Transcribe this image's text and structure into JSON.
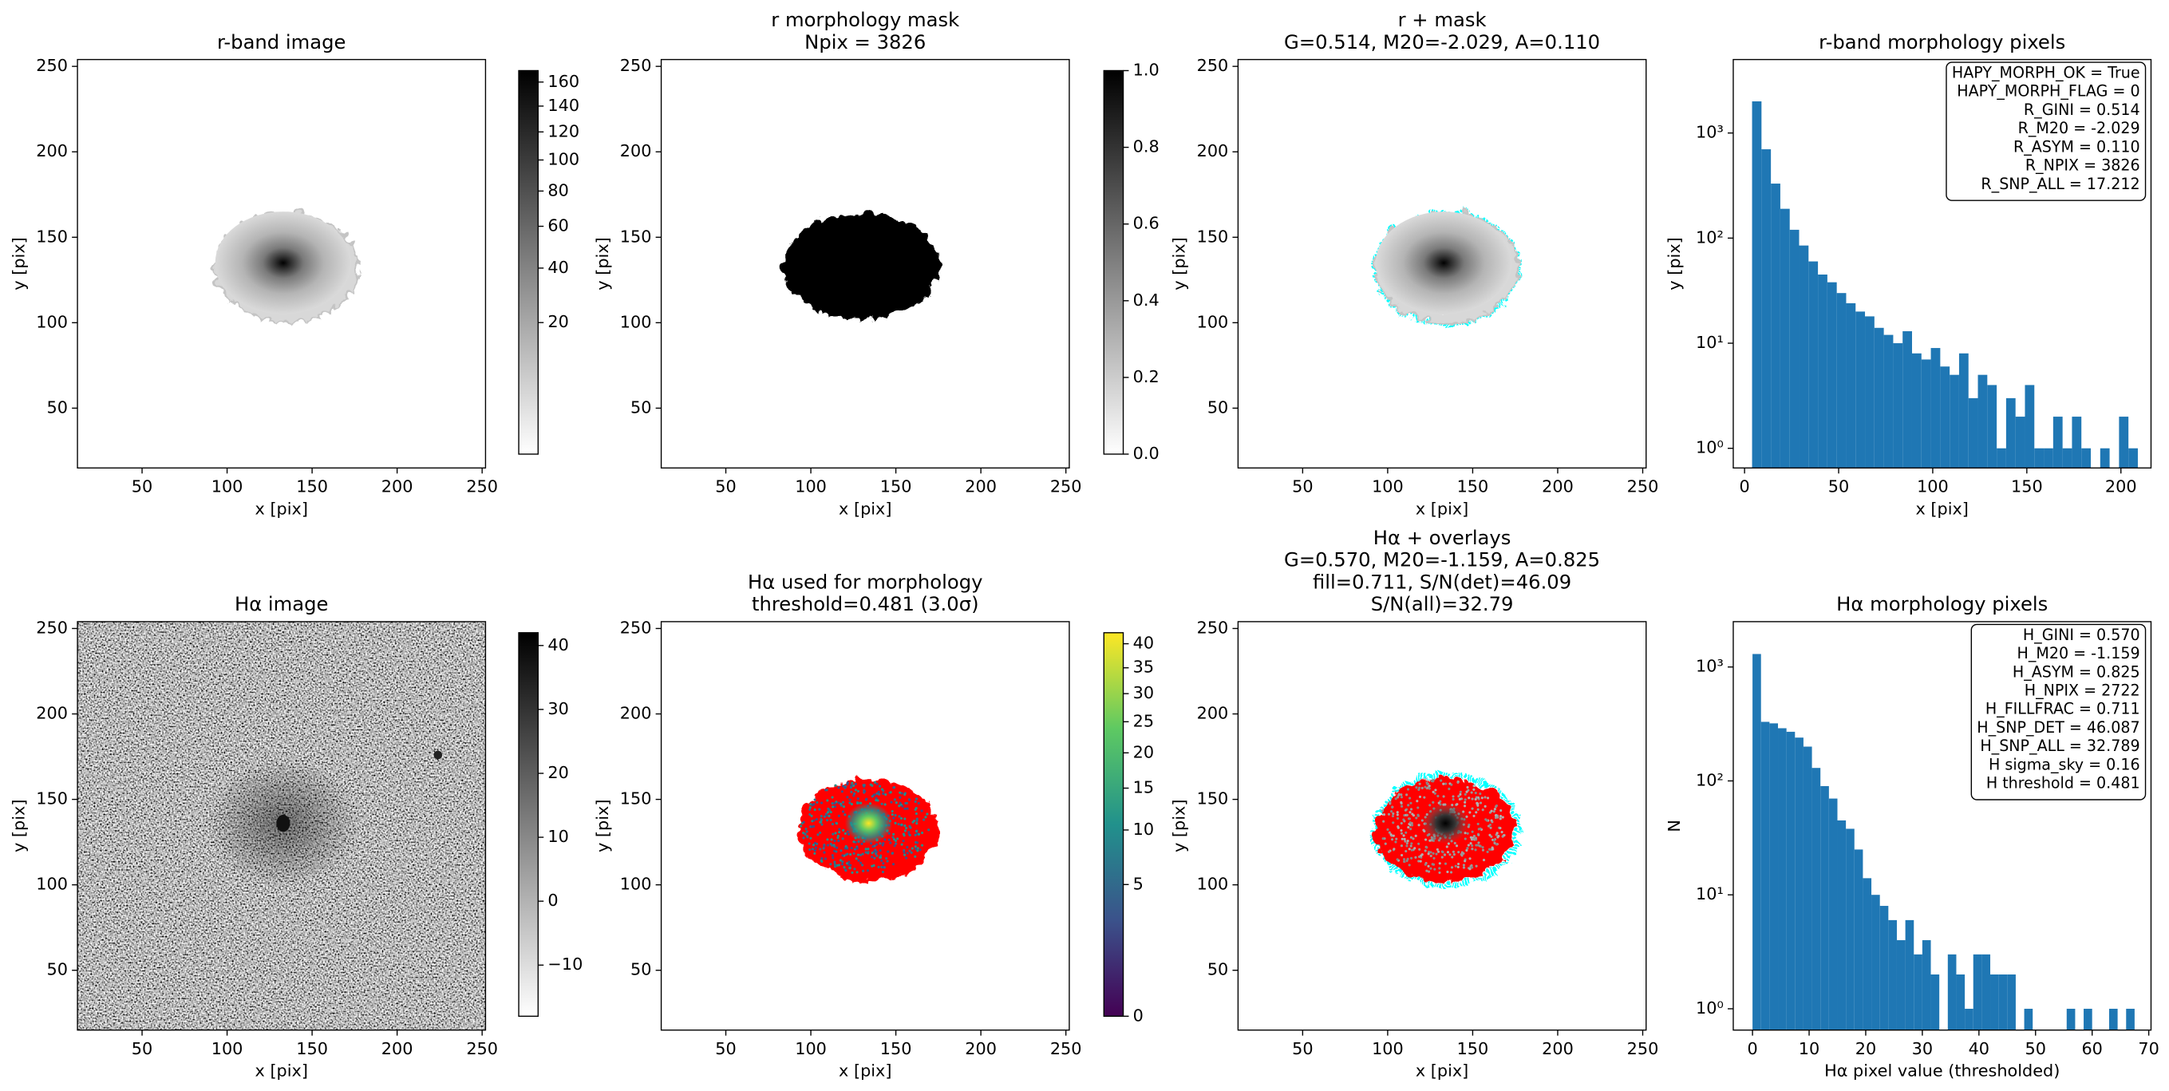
{
  "chart_data": [
    {
      "type": "image",
      "title": "r-band image",
      "xlabel": "x [pix]",
      "ylabel": "y [pix]",
      "xlim": [
        12,
        252
      ],
      "ylim": [
        15,
        254
      ],
      "xticks": [
        50,
        100,
        150,
        200,
        250
      ],
      "yticks": [
        50,
        100,
        150,
        200,
        250
      ],
      "colorbar": {
        "cmap": "gray_r",
        "scale": "sqrt",
        "lim": [
          0,
          170
        ],
        "ticks": [
          20,
          40,
          60,
          80,
          100,
          120,
          140,
          160
        ]
      }
    },
    {
      "type": "image",
      "title": [
        "r morphology mask",
        "Npix = 3826"
      ],
      "xlabel": "x [pix]",
      "ylabel": "y [pix]",
      "xlim": [
        12,
        252
      ],
      "ylim": [
        15,
        254
      ],
      "xticks": [
        50,
        100,
        150,
        200,
        250
      ],
      "yticks": [
        50,
        100,
        150,
        200,
        250
      ],
      "colorbar": {
        "cmap": "gray_r",
        "scale": "linear",
        "lim": [
          0,
          1
        ],
        "ticks": [
          {
            "value": 0,
            "label": "0.0"
          },
          0.2,
          0.4,
          0.6,
          0.8,
          {
            "value": 1,
            "label": "1.0"
          }
        ]
      }
    },
    {
      "type": "image",
      "title": [
        "r + mask",
        "G=0.514, M20=-2.029, A=0.110"
      ],
      "xlabel": "x [pix]",
      "ylabel": "y [pix]",
      "xlim": [
        12,
        252
      ],
      "ylim": [
        15,
        254
      ],
      "xticks": [
        50,
        100,
        150,
        200,
        250
      ],
      "yticks": [
        50,
        100,
        150,
        200,
        250
      ],
      "contour_color": "#00ffff"
    },
    {
      "type": "histogram",
      "title": "r-band morphology pixels",
      "xlabel": "x [pix]",
      "ylabel": "y [pix]",
      "xlim": [
        -6,
        216
      ],
      "ylim": [
        0.65,
        5000
      ],
      "log_y": true,
      "color": "#1f77b4",
      "xticks": [
        0,
        50,
        100,
        150,
        200
      ],
      "yticks": [
        {
          "value": 1,
          "label": "10⁰"
        },
        {
          "value": 10,
          "label": "10¹"
        },
        {
          "value": 100,
          "label": "10²"
        },
        {
          "value": 1000,
          "label": "10³"
        }
      ],
      "bins": [
        4,
        9,
        14,
        19,
        24,
        29,
        34,
        39,
        44,
        49,
        54,
        59,
        64,
        69,
        74,
        79,
        84,
        89,
        94,
        99,
        104,
        109,
        114,
        119,
        124,
        129,
        134,
        139,
        144,
        149,
        154,
        159,
        164,
        169,
        174,
        179,
        184,
        189,
        194,
        199,
        204,
        209
      ],
      "counts": [
        2000,
        700,
        330,
        190,
        120,
        85,
        60,
        45,
        38,
        30,
        24,
        20,
        18,
        14,
        12,
        10,
        13,
        8,
        7,
        9,
        6,
        5,
        8,
        3,
        5,
        4,
        1,
        3,
        2,
        4,
        1,
        1,
        2,
        1,
        2,
        1,
        0,
        1,
        0,
        2,
        1
      ],
      "annotation": [
        "HAPY_MORPH_OK = True",
        "HAPY_MORPH_FLAG = 0",
        "R_GINI = 0.514",
        "R_M20 = -2.029",
        "R_ASYM = 0.110",
        "R_NPIX = 3826",
        "R_SNP_ALL = 17.212"
      ]
    },
    {
      "type": "image",
      "title": "Hα image",
      "xlabel": "x [pix]",
      "ylabel": "y [pix]",
      "xlim": [
        12,
        252
      ],
      "ylim": [
        15,
        254
      ],
      "xticks": [
        50,
        100,
        150,
        200,
        250
      ],
      "yticks": [
        50,
        100,
        150,
        200,
        250
      ],
      "colorbar": {
        "cmap": "gray_r",
        "scale": "linear",
        "lim": [
          -18,
          42
        ],
        "ticks": [
          {
            "value": -10,
            "label": "−10"
          },
          0,
          10,
          20,
          30,
          40
        ]
      }
    },
    {
      "type": "image",
      "title": [
        "Hα used for morphology",
        "threshold=0.481 (3.0σ)"
      ],
      "xlabel": "x [pix]",
      "ylabel": "y [pix]",
      "xlim": [
        12,
        252
      ],
      "ylim": [
        15,
        254
      ],
      "xticks": [
        50,
        100,
        150,
        200,
        250
      ],
      "yticks": [
        50,
        100,
        150,
        200,
        250
      ],
      "contour_color": "#ff0000",
      "colorbar": {
        "cmap": "viridis",
        "scale": "sqrt",
        "lim": [
          0,
          42.4
        ],
        "ticks": [
          0,
          5,
          10,
          15,
          20,
          25,
          30,
          35,
          40
        ]
      }
    },
    {
      "type": "image",
      "title": [
        "Hα + overlays",
        "G=0.570, M20=-1.159, A=0.825",
        "fill=0.711, S/N(det)=46.09",
        "S/N(all)=32.79"
      ],
      "xlabel": "x [pix]",
      "ylabel": "y [pix]",
      "xlim": [
        12,
        252
      ],
      "ylim": [
        15,
        254
      ],
      "xticks": [
        50,
        100,
        150,
        200,
        250
      ],
      "yticks": [
        50,
        100,
        150,
        200,
        250
      ],
      "contour_color": "#ff0000"
    },
    {
      "type": "histogram",
      "title": "Hα morphology pixels",
      "xlabel": "Hα pixel value (thresholded)",
      "ylabel": "N",
      "xlim": [
        -3.4,
        70.4
      ],
      "ylim": [
        0.65,
        2500
      ],
      "log_y": true,
      "color": "#1f77b4",
      "xticks": [
        0,
        10,
        20,
        30,
        40,
        50,
        60,
        70
      ],
      "yticks": [
        {
          "value": 1,
          "label": "10⁰"
        },
        {
          "value": 10,
          "label": "10¹"
        },
        {
          "value": 100,
          "label": "10²"
        },
        {
          "value": 1000,
          "label": "10³"
        }
      ],
      "bins": [
        0,
        1.5,
        3,
        4.5,
        6,
        7.5,
        9,
        10.5,
        12,
        13.5,
        15,
        16.5,
        18,
        19.5,
        21,
        22.5,
        24,
        25.5,
        27,
        28.5,
        30,
        31.5,
        33,
        34.5,
        36,
        37.5,
        39,
        40.5,
        42,
        43.5,
        45,
        46.5,
        48,
        49.5,
        51,
        52.5,
        54,
        55.5,
        57,
        58.5,
        60,
        61.5,
        63,
        64.5,
        66,
        67.5
      ],
      "counts": [
        1300,
        330,
        320,
        290,
        270,
        240,
        200,
        130,
        90,
        70,
        45,
        38,
        25,
        14,
        10,
        8,
        6,
        4,
        6,
        3,
        4,
        2,
        0,
        3,
        2,
        1,
        3,
        3,
        2,
        2,
        2,
        0,
        1,
        0,
        0,
        0,
        0,
        1,
        0,
        1,
        0,
        0,
        1,
        0,
        1
      ],
      "annotation": [
        "H_GINI = 0.570",
        "H_M20 = -1.159",
        "H_ASYM = 0.825",
        "H_NPIX = 2722",
        "H_FILLFRAC = 0.711",
        "H_SNP_DET = 46.087",
        "H_SNP_ALL = 32.789",
        "H sigma_sky = 0.16",
        "H threshold = 0.481"
      ]
    }
  ]
}
